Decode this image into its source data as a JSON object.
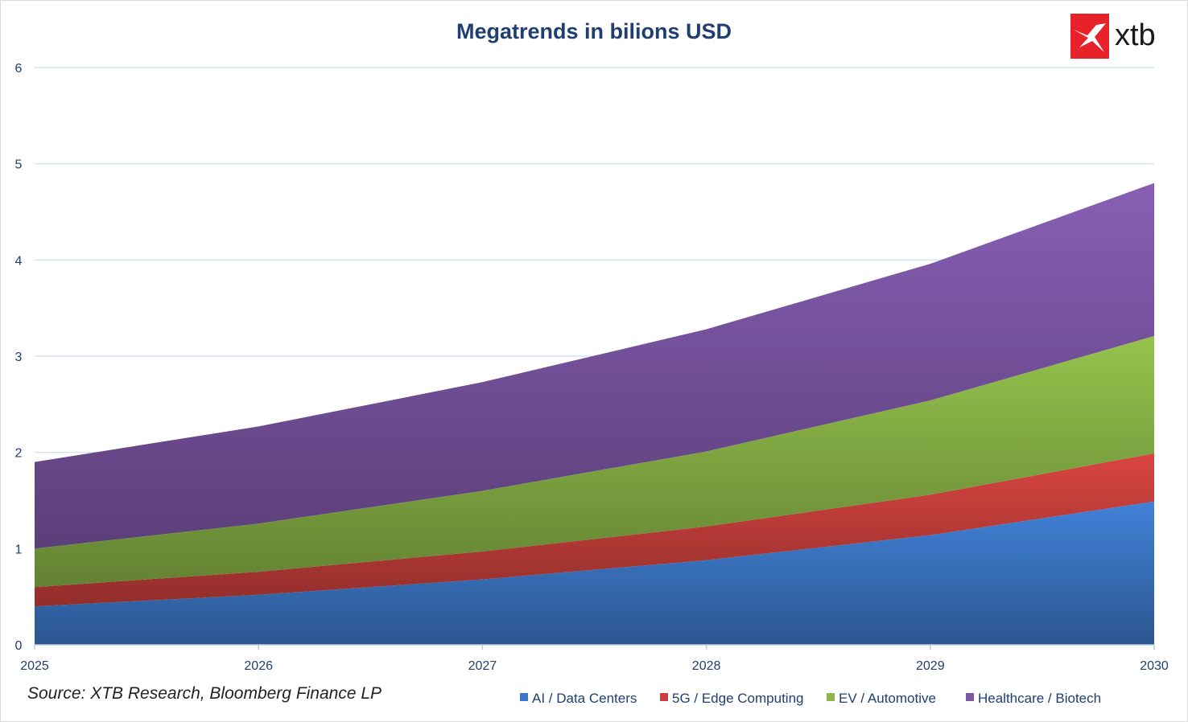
{
  "chart_data": {
    "type": "area",
    "stacked": true,
    "title": "Megatrends in bilions USD",
    "xlabel": "",
    "ylabel": "",
    "x": [
      "2025",
      "2026",
      "2027",
      "2028",
      "2029",
      "2030"
    ],
    "ylim": [
      0,
      6
    ],
    "yticks": [
      "0",
      "1",
      "2",
      "3",
      "4",
      "5",
      "6"
    ],
    "grid": true,
    "legend_position": "bottom-right",
    "series": [
      {
        "name": "AI / Data Centers",
        "color": "#3c78c8",
        "values": [
          0.4,
          0.52,
          0.68,
          0.88,
          1.14,
          1.49
        ]
      },
      {
        "name": "5G / Edge Computing",
        "color": "#c9403c",
        "values": [
          0.2,
          0.24,
          0.29,
          0.35,
          0.42,
          0.5
        ]
      },
      {
        "name": "EV / Automotive",
        "color": "#8ab547",
        "values": [
          0.4,
          0.5,
          0.63,
          0.78,
          0.98,
          1.22
        ]
      },
      {
        "name": "Healthcare / Biotech",
        "color": "#7e58a8",
        "values": [
          0.9,
          1.01,
          1.13,
          1.27,
          1.42,
          1.59
        ]
      }
    ],
    "source": "Source: XTB Research, Bloomberg Finance LP"
  },
  "logo": {
    "text": "xtb",
    "color": "#e8212a",
    "icon": "xtb-x-mark-icon"
  }
}
